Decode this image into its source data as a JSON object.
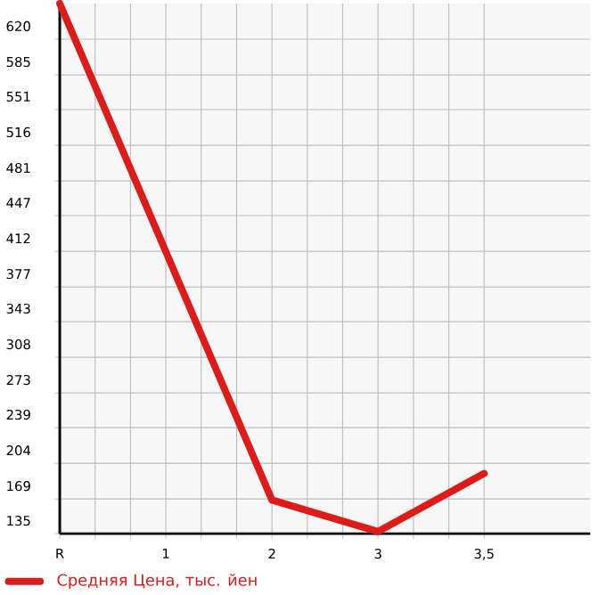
{
  "chart_data": {
    "type": "line",
    "categories": [
      "R",
      "1",
      "2",
      "3",
      "3,5"
    ],
    "series": [
      {
        "name": "Средняя Цена, тыс. йен",
        "color": "#dd1c1a",
        "values": [
          655,
          null,
          168,
          137,
          194
        ]
      }
    ],
    "ylim": [
      135,
      655
    ],
    "yticks": [
      135,
      169,
      204,
      239,
      273,
      308,
      343,
      377,
      412,
      447,
      481,
      516,
      551,
      585,
      620
    ],
    "grid": true,
    "legend": "bottom",
    "marker": "none",
    "line_style": "solid"
  }
}
